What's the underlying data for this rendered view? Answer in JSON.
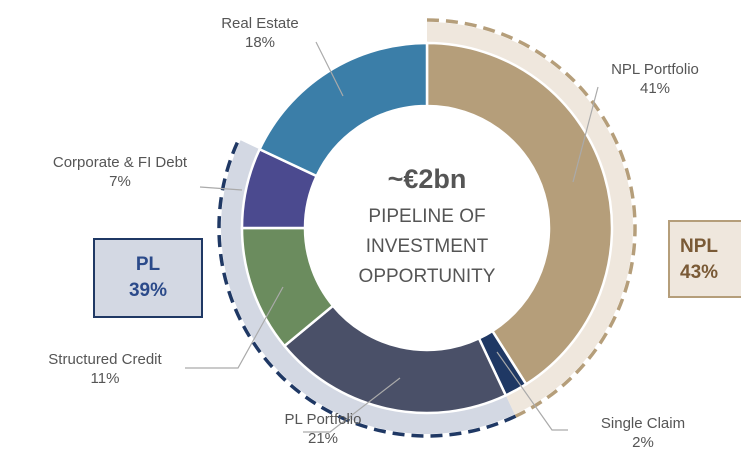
{
  "chart_data": {
    "type": "donut",
    "center_title": "~€2bn",
    "center_lines": [
      "PIPELINE OF",
      "INVESTMENT",
      "OPPORTUNITY"
    ],
    "categories": [
      "NPL Portfolio",
      "Single Claim",
      "PL Portfolio",
      "Structured Credit",
      "Corporate & FI Debt",
      "Real Estate"
    ],
    "values": [
      41,
      2,
      21,
      11,
      7,
      18
    ],
    "value_labels": [
      "41%",
      "2%",
      "21%",
      "11%",
      "7%",
      "18%"
    ],
    "colors": [
      "#b59e7a",
      "#1f3864",
      "#4a5068",
      "#6b8c5e",
      "#4b4a8f",
      "#3b7ea8"
    ],
    "groups": [
      {
        "name": "NPL",
        "value": 43,
        "value_label": "43%",
        "color": "#b59e7a",
        "fill": "#efe7dd",
        "text_color": "#7a5a36"
      },
      {
        "name": "PL",
        "value": 39,
        "value_label": "39%",
        "color": "#1f3864",
        "fill": "#d3d8e3",
        "text_color": "#2b4a8a"
      }
    ]
  }
}
